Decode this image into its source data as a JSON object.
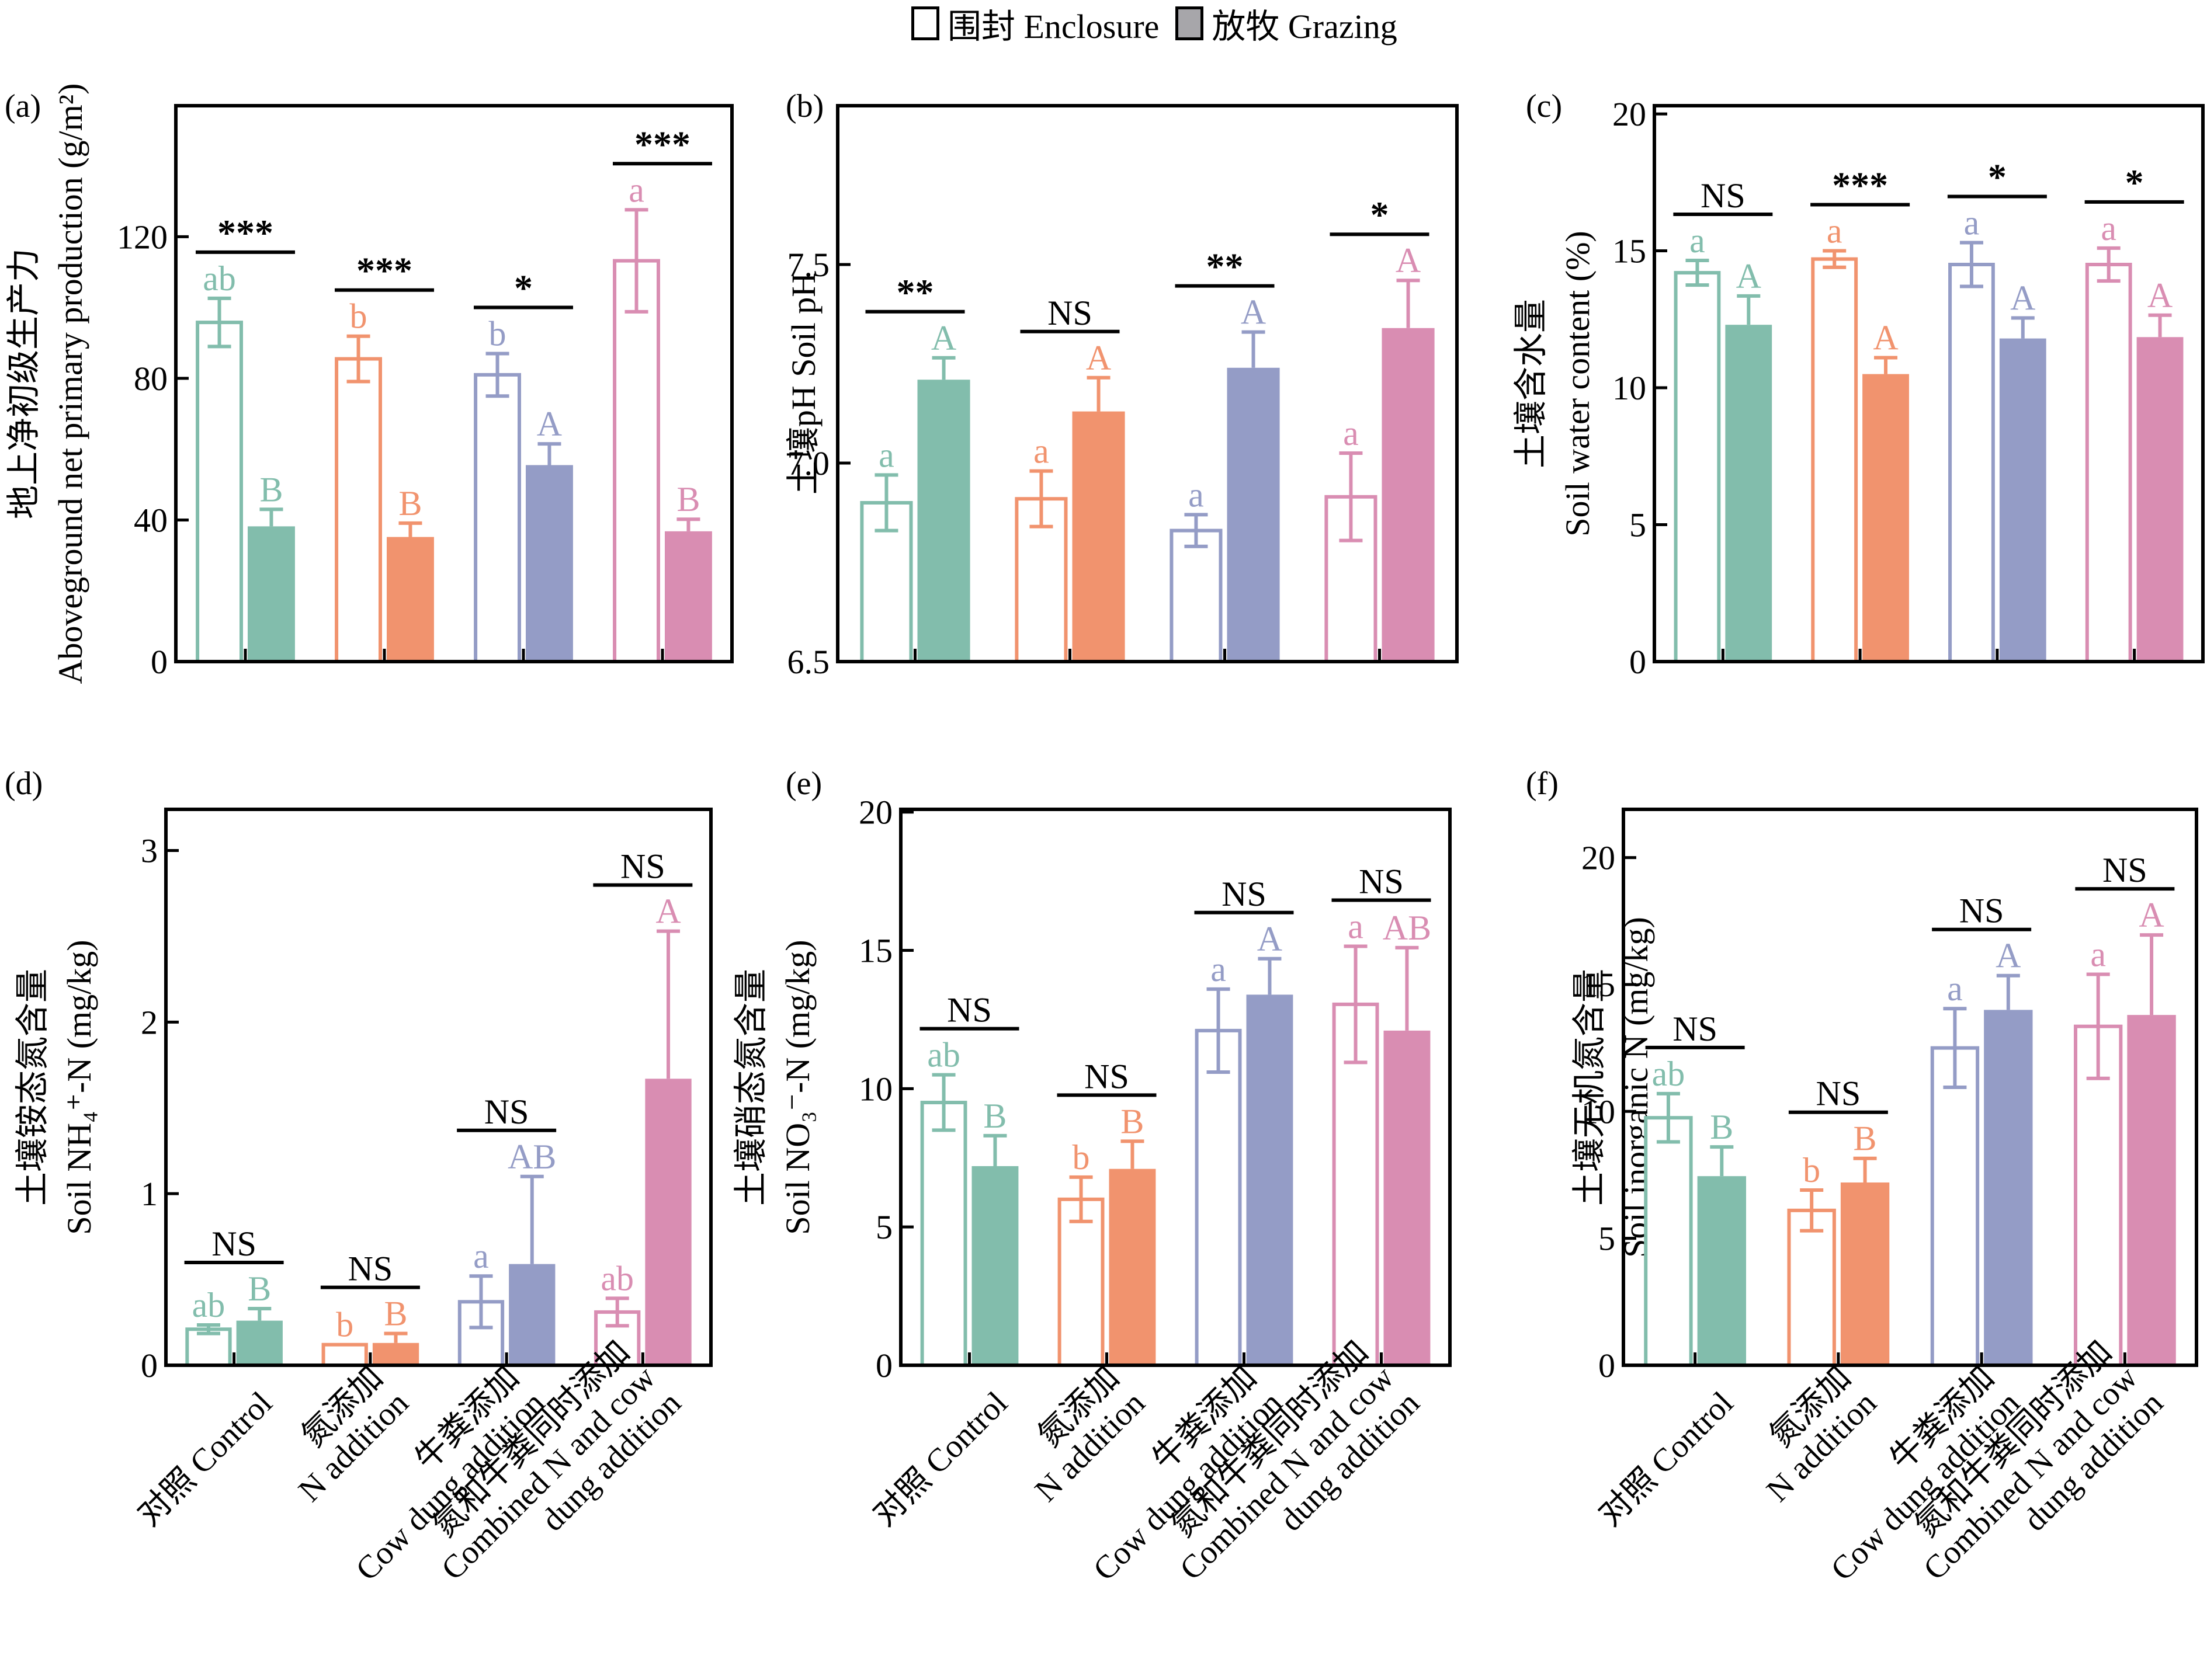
{
  "legend": {
    "items": [
      {
        "label": "围封 Enclosure",
        "fill": "#ffffff"
      },
      {
        "label": "放牧 Grazing",
        "fill": "#a7a6aa"
      }
    ]
  },
  "colors": {
    "treatments": [
      "#82BDAC",
      "#F1936E",
      "#949CC6",
      "#D98DB2"
    ],
    "axis": "#000000"
  },
  "chart_data": [
    {
      "panel": "(a)",
      "type": "bar",
      "ylabel_cn": "地上净初级生产力",
      "ylabel_en": "Aboveground net primary production (g/m²)",
      "ylim": [
        0,
        157
      ],
      "yticks": [
        0,
        40,
        80,
        120
      ],
      "categories": [
        "对照 Control",
        "氮添加 N addition",
        "牛粪添加 Cow dung addition",
        "氮和牛粪同时添加 Combined N and cow dung addition"
      ],
      "series": [
        {
          "name": "围封 Enclosure",
          "values": [
            95.8,
            85.5,
            81.0,
            113.2
          ],
          "errors": [
            6.8,
            6.4,
            6.0,
            14.4
          ],
          "letters": [
            "ab",
            "b",
            "b",
            "a"
          ]
        },
        {
          "name": "放牧 Grazing",
          "values": [
            38.2,
            35.2,
            55.5,
            36.8
          ],
          "errors": [
            4.8,
            3.9,
            6.0,
            3.4
          ],
          "letters": [
            "B",
            "B",
            "A",
            "B"
          ]
        }
      ],
      "significance": [
        "***",
        "***",
        "*",
        "***"
      ]
    },
    {
      "panel": "(b)",
      "type": "bar",
      "ylabel_cn": "土壤pH",
      "ylabel_en": "Soil pH",
      "ylim": [
        6.5,
        7.9
      ],
      "yticks": [
        6.5,
        7.0,
        7.5
      ],
      "tick_decimals": 1,
      "categories": [
        "对照 Control",
        "氮添加 N addition",
        "牛粪添加 Cow dung addition",
        "氮和牛粪同时添加 Combined N and cow dung addition"
      ],
      "series": [
        {
          "name": "围封 Enclosure",
          "values": [
            6.9,
            6.91,
            6.83,
            6.915
          ],
          "errors": [
            0.07,
            0.07,
            0.04,
            0.11
          ],
          "letters": [
            "a",
            "a",
            "a",
            "a"
          ]
        },
        {
          "name": "放牧 Grazing",
          "values": [
            7.21,
            7.13,
            7.24,
            7.34
          ],
          "errors": [
            0.055,
            0.085,
            0.09,
            0.12
          ],
          "letters": [
            "A",
            "A",
            "A",
            "A"
          ]
        }
      ],
      "significance": [
        "**",
        "NS",
        "**",
        "*"
      ]
    },
    {
      "panel": "(c)",
      "type": "bar",
      "ylabel_cn": "土壤含水量",
      "ylabel_en": "Soil water content (%)",
      "ylim": [
        0,
        20.3
      ],
      "yticks": [
        0,
        5,
        10,
        15,
        20
      ],
      "categories": [
        "对照 Control",
        "氮添加 N addition",
        "牛粪添加 Cow dung addition",
        "氮和牛粪同时添加 Combined N and cow dung addition"
      ],
      "series": [
        {
          "name": "围封 Enclosure",
          "values": [
            14.2,
            14.7,
            14.5,
            14.5
          ],
          "errors": [
            0.45,
            0.3,
            0.8,
            0.6
          ],
          "letters": [
            "a",
            "a",
            "a",
            "a"
          ]
        },
        {
          "name": "放牧 Grazing",
          "values": [
            12.3,
            10.5,
            11.8,
            11.85
          ],
          "errors": [
            1.05,
            0.6,
            0.75,
            0.8
          ],
          "letters": [
            "A",
            "A",
            "A",
            "A"
          ]
        }
      ],
      "significance": [
        "NS",
        "***",
        "*",
        "*"
      ]
    },
    {
      "panel": "(d)",
      "type": "bar",
      "ylabel_cn": "土壤铵态氮含量",
      "ylabel_en": "Soil NH₄⁺-N (mg/kg)",
      "ylim": [
        0,
        3.24
      ],
      "yticks": [
        0,
        1,
        2,
        3
      ],
      "categories": [
        "对照 Control",
        "氮添加 N addition",
        "牛粪添加 Cow dung addition",
        "氮和牛粪同时添加 Combined N and cow dung addition"
      ],
      "series": [
        {
          "name": "围封 Enclosure",
          "values": [
            0.21,
            0.12,
            0.37,
            0.31
          ],
          "errors": [
            0.025,
            0.0,
            0.15,
            0.08
          ],
          "letters": [
            "ab",
            "b",
            "a",
            "ab"
          ]
        },
        {
          "name": "放牧 Grazing",
          "values": [
            0.26,
            0.13,
            0.59,
            1.67
          ],
          "errors": [
            0.07,
            0.055,
            0.51,
            0.86
          ],
          "letters": [
            "B",
            "B",
            "AB",
            "A"
          ]
        }
      ],
      "significance": [
        "NS",
        "NS",
        "NS",
        "NS"
      ]
    },
    {
      "panel": "(e)",
      "type": "bar",
      "ylabel_cn": "土壤硝态氮含量",
      "ylabel_en": "Soil NO₃⁻-N (mg/kg)",
      "ylim": [
        0,
        20.1
      ],
      "yticks": [
        0,
        5,
        10,
        15,
        20
      ],
      "categories": [
        "对照 Control",
        "氮添加 N addition",
        "牛粪添加 Cow dung addition",
        "氮和牛粪同时添加 Combined N and cow dung addition"
      ],
      "series": [
        {
          "name": "围封 Enclosure",
          "values": [
            9.5,
            6.0,
            12.1,
            13.05
          ],
          "errors": [
            1.0,
            0.8,
            1.5,
            2.1
          ],
          "letters": [
            "ab",
            "b",
            "a",
            "a"
          ]
        },
        {
          "name": "放牧 Grazing",
          "values": [
            7.2,
            7.1,
            13.4,
            12.1
          ],
          "errors": [
            1.1,
            1.0,
            1.3,
            3.0
          ],
          "letters": [
            "B",
            "B",
            "A",
            "AB"
          ]
        }
      ],
      "significance": [
        "NS",
        "NS",
        "NS",
        "NS"
      ]
    },
    {
      "panel": "(f)",
      "type": "bar",
      "ylabel_cn": "土壤无机氮含量",
      "ylabel_en": "Soil inorganic N (mg/kg)",
      "ylim": [
        0,
        21.9
      ],
      "yticks": [
        0,
        5,
        10,
        15,
        20
      ],
      "categories": [
        "对照 Control",
        "氮添加 N addition",
        "牛粪添加 Cow dung addition",
        "氮和牛粪同时添加 Combined N and cow dung addition"
      ],
      "series": [
        {
          "name": "围封 Enclosure",
          "values": [
            9.75,
            6.1,
            12.5,
            13.35
          ],
          "errors": [
            0.95,
            0.8,
            1.55,
            2.05
          ],
          "letters": [
            "ab",
            "b",
            "a",
            "a"
          ]
        },
        {
          "name": "放牧 Grazing",
          "values": [
            7.45,
            7.2,
            14.0,
            13.8
          ],
          "errors": [
            1.15,
            0.95,
            1.35,
            3.15
          ],
          "letters": [
            "B",
            "B",
            "A",
            "A"
          ]
        }
      ],
      "significance": [
        "NS",
        "NS",
        "NS",
        "NS"
      ]
    }
  ],
  "xlabels": [
    [
      "对照 Control"
    ],
    [
      "氮添加",
      "N addition"
    ],
    [
      "牛粪添加",
      "Cow dung addition"
    ],
    [
      "氮和牛粪同时添加",
      "Combined N and cow",
      "dung addition"
    ]
  ]
}
